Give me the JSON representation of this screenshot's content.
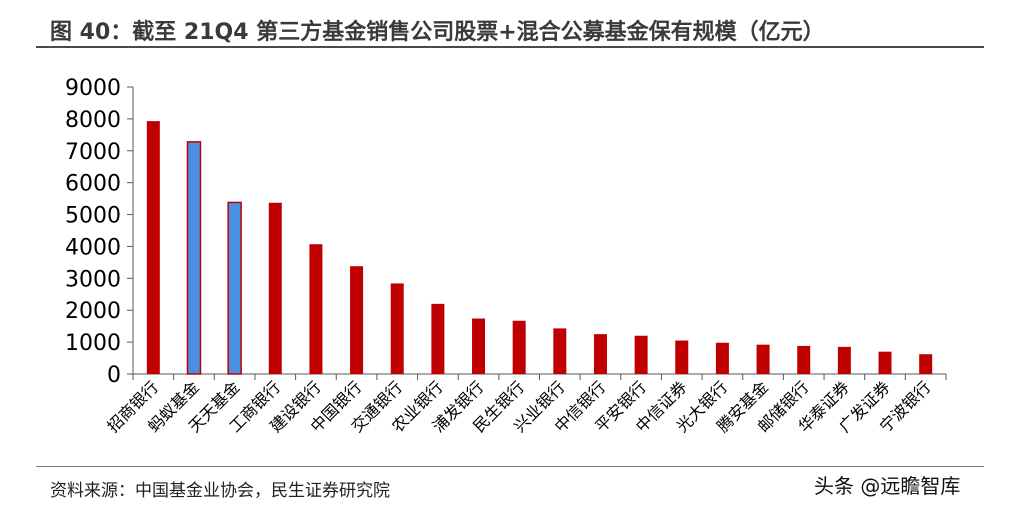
{
  "title": "图 40：截至 21Q4 第三方基金销售公司股票+混合公募基金保有规模（亿元）",
  "source": "资料来源：中国基金业协会，民生证券研究院",
  "watermark": "头条 @远瞻智库",
  "colors": {
    "bank": "#c00000",
    "third_party": "#4a90e2",
    "third_party_border": "#c00000"
  },
  "chart_data": {
    "type": "bar",
    "categories": [
      "招商银行",
      "蚂蚁基金",
      "天天基金",
      "工商银行",
      "建设银行",
      "中国银行",
      "交通银行",
      "农业银行",
      "浦发银行",
      "民生银行",
      "兴业银行",
      "中信银行",
      "平安银行",
      "中信证券",
      "光大银行",
      "腾安基金",
      "邮储银行",
      "华泰证券",
      "广发证券",
      "宁波银行"
    ],
    "values": [
      7930,
      7280,
      5380,
      5370,
      4070,
      3380,
      2840,
      2200,
      1740,
      1670,
      1430,
      1250,
      1200,
      1050,
      980,
      920,
      880,
      850,
      700,
      620
    ],
    "highlighted": [
      "蚂蚁基金",
      "天天基金"
    ],
    "yticks": [
      "0",
      "1000",
      "2000",
      "3000",
      "4000",
      "5000",
      "6000",
      "7000",
      "8000",
      "9000"
    ],
    "ylim": [
      0,
      9000
    ],
    "xlabel": "",
    "ylabel": "",
    "grid": false,
    "legend": "none"
  }
}
